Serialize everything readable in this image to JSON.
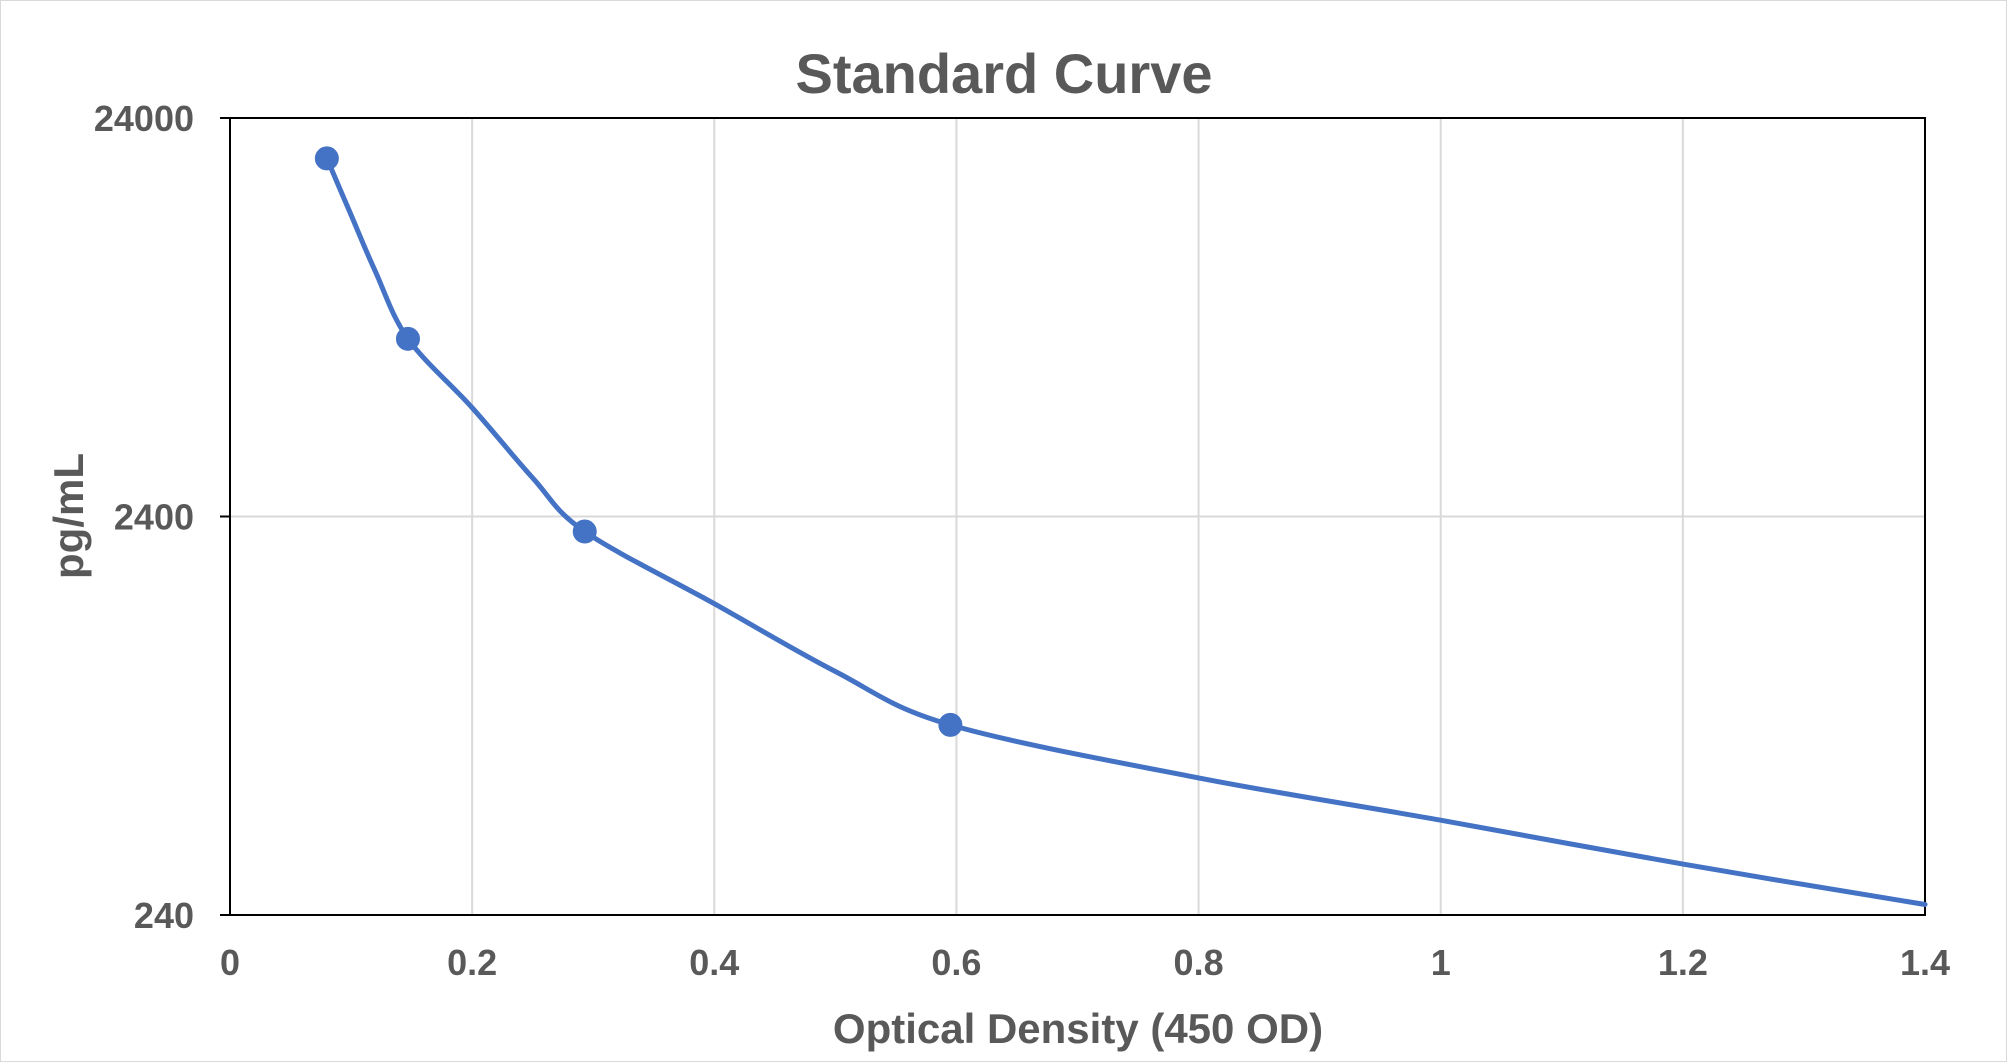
{
  "chart_data": {
    "type": "scatter",
    "title": "Standard Curve",
    "xlabel": "Optical Density (450 OD)",
    "ylabel": "pg/mL",
    "xlim": [
      0,
      1.4
    ],
    "ylim": [
      240,
      24000
    ],
    "y_scale": "log",
    "x_ticks": [
      "0",
      "0.2",
      "0.4",
      "0.6",
      "0.8",
      "1",
      "1.2",
      "1.4"
    ],
    "y_ticks": [
      "24000",
      "2400",
      "240"
    ],
    "grid": true,
    "legend": "none",
    "series": [
      {
        "points": [
          {
            "x": 0.08,
            "y": 19000
          },
          {
            "x": 0.147,
            "y": 6700
          },
          {
            "x": 0.293,
            "y": 2200
          },
          {
            "x": 0.595,
            "y": 720
          }
        ],
        "trend": [
          {
            "x": 0.08,
            "y": 19000
          },
          {
            "x": 0.1,
            "y": 13700
          },
          {
            "x": 0.12,
            "y": 9900
          },
          {
            "x": 0.147,
            "y": 6700
          },
          {
            "x": 0.2,
            "y": 4500
          },
          {
            "x": 0.25,
            "y": 3000
          },
          {
            "x": 0.293,
            "y": 2200
          },
          {
            "x": 0.4,
            "y": 1450
          },
          {
            "x": 0.5,
            "y": 980
          },
          {
            "x": 0.595,
            "y": 720
          },
          {
            "x": 0.8,
            "y": 530
          },
          {
            "x": 1.0,
            "y": 415
          },
          {
            "x": 1.2,
            "y": 322
          },
          {
            "x": 1.4,
            "y": 255
          }
        ],
        "color": "#4472c4"
      }
    ]
  }
}
